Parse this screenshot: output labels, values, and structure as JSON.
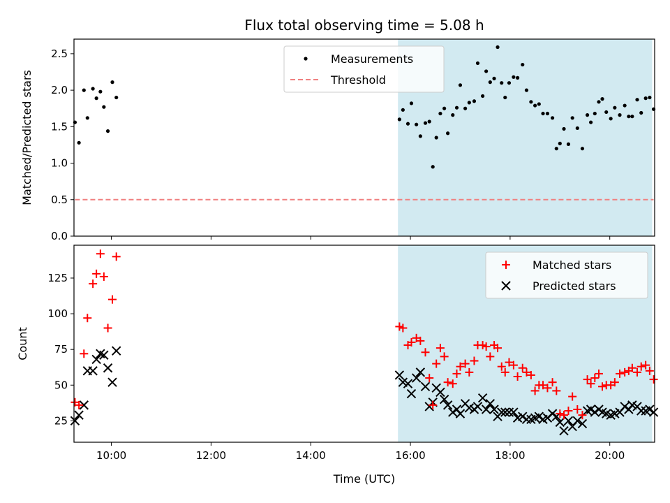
{
  "chart_data": [
    {
      "type": "scatter",
      "title": "Flux total observing time = 5.08 h",
      "ylabel": "Matched/Predicted stars",
      "ylim": [
        0,
        2.7
      ],
      "yticks": [
        "0.0",
        "0.5",
        "1.0",
        "1.5",
        "2.0",
        "2.5"
      ],
      "xlim": [
        9.25,
        20.9
      ],
      "shaded_region": [
        15.75,
        20.85
      ],
      "shade_color": "#add8e6",
      "threshold": 0.5,
      "legend": {
        "placement": "top-center",
        "items": [
          "Measurements",
          "Threshold"
        ]
      },
      "series": [
        {
          "name": "Measurements",
          "color": "#000000",
          "marker": "dot",
          "x": [
            9.27,
            9.35,
            9.45,
            9.52,
            9.63,
            9.7,
            9.78,
            9.85,
            9.93,
            10.02,
            10.1,
            15.78,
            15.85,
            15.95,
            16.02,
            16.12,
            16.2,
            16.3,
            16.38,
            16.45,
            16.52,
            16.6,
            16.68,
            16.75,
            16.85,
            16.93,
            17.0,
            17.1,
            17.18,
            17.28,
            17.35,
            17.45,
            17.52,
            17.6,
            17.68,
            17.75,
            17.83,
            17.9,
            17.98,
            18.07,
            18.15,
            18.25,
            18.33,
            18.42,
            18.5,
            18.58,
            18.66,
            18.75,
            18.85,
            18.93,
            19.0,
            19.08,
            19.17,
            19.25,
            19.35,
            19.45,
            19.55,
            19.62,
            19.7,
            19.78,
            19.85,
            19.93,
            20.02,
            20.1,
            20.2,
            20.3,
            20.38,
            20.45,
            20.55,
            20.63,
            20.72,
            20.8,
            20.88
          ],
          "y": [
            1.56,
            1.28,
            2.0,
            1.62,
            2.02,
            1.89,
            1.98,
            1.77,
            1.44,
            2.11,
            1.9,
            1.6,
            1.73,
            1.54,
            1.82,
            1.53,
            1.37,
            1.55,
            1.57,
            0.95,
            1.35,
            1.68,
            1.75,
            1.41,
            1.66,
            1.76,
            2.07,
            1.75,
            1.83,
            1.85,
            2.37,
            1.92,
            2.26,
            2.11,
            2.16,
            2.59,
            2.1,
            1.9,
            2.1,
            2.18,
            2.17,
            2.35,
            2.0,
            1.84,
            1.79,
            1.81,
            1.68,
            1.68,
            1.62,
            1.2,
            1.27,
            1.47,
            1.26,
            1.62,
            1.48,
            1.2,
            1.66,
            1.56,
            1.68,
            1.84,
            1.88,
            1.7,
            1.61,
            1.76,
            1.66,
            1.79,
            1.64,
            1.64,
            1.87,
            1.69,
            1.89,
            1.9,
            1.74
          ]
        },
        {
          "name": "Threshold",
          "color": "#f08080",
          "marker": "dashed-line",
          "x": [
            9.27,
            20.88
          ],
          "y": [
            0.5,
            0.5
          ]
        }
      ]
    },
    {
      "type": "scatter",
      "xlabel": "Time (UTC)",
      "ylabel": "Count",
      "ylim": [
        10,
        148
      ],
      "yticks": [
        "25",
        "50",
        "75",
        "100",
        "125"
      ],
      "xlim": [
        9.25,
        20.9
      ],
      "xticks": [
        "10:00",
        "12:00",
        "14:00",
        "16:00",
        "18:00",
        "20:00"
      ],
      "shaded_region": [
        15.75,
        20.85
      ],
      "shade_color": "#add8e6",
      "legend": {
        "placement": "top-right",
        "items": [
          "Matched stars",
          "Predicted stars"
        ]
      },
      "series": [
        {
          "name": "Matched stars",
          "color": "#ff0000",
          "marker": "plus",
          "x": [
            9.27,
            9.35,
            9.45,
            9.52,
            9.63,
            9.7,
            9.78,
            9.85,
            9.93,
            10.02,
            10.1,
            15.78,
            15.85,
            15.95,
            16.02,
            16.12,
            16.2,
            16.3,
            16.38,
            16.45,
            16.52,
            16.6,
            16.68,
            16.75,
            16.85,
            16.93,
            17.0,
            17.1,
            17.18,
            17.28,
            17.35,
            17.45,
            17.52,
            17.6,
            17.68,
            17.75,
            17.83,
            17.9,
            17.98,
            18.07,
            18.15,
            18.25,
            18.33,
            18.42,
            18.5,
            18.58,
            18.66,
            18.75,
            18.85,
            18.93,
            19.0,
            19.08,
            19.17,
            19.25,
            19.35,
            19.45,
            19.55,
            19.62,
            19.7,
            19.78,
            19.85,
            19.93,
            20.02,
            20.1,
            20.2,
            20.3,
            20.38,
            20.45,
            20.55,
            20.63,
            20.72,
            20.8,
            20.88
          ],
          "y": [
            38,
            36,
            72,
            97,
            121,
            128,
            142,
            126,
            90,
            110,
            140,
            91,
            90,
            78,
            80,
            83,
            81,
            73,
            55,
            36,
            65,
            76,
            70,
            52,
            51,
            58,
            63,
            65,
            59,
            67,
            78,
            78,
            77,
            70,
            78,
            76,
            63,
            59,
            66,
            64,
            56,
            62,
            59,
            57,
            46,
            50,
            50,
            48,
            52,
            46,
            30,
            29,
            32,
            42,
            33,
            29,
            54,
            51,
            55,
            58,
            49,
            50,
            50,
            52,
            58,
            59,
            60,
            62,
            59,
            63,
            64,
            60,
            54
          ]
        },
        {
          "name": "Predicted stars",
          "color": "#000000",
          "marker": "cross",
          "x": [
            9.27,
            9.35,
            9.45,
            9.52,
            9.63,
            9.7,
            9.78,
            9.85,
            9.93,
            10.02,
            10.1,
            15.78,
            15.85,
            15.95,
            16.02,
            16.12,
            16.2,
            16.3,
            16.38,
            16.45,
            16.52,
            16.6,
            16.68,
            16.75,
            16.85,
            16.93,
            17.0,
            17.1,
            17.18,
            17.28,
            17.35,
            17.45,
            17.52,
            17.6,
            17.68,
            17.75,
            17.83,
            17.9,
            17.98,
            18.07,
            18.15,
            18.25,
            18.33,
            18.42,
            18.5,
            18.58,
            18.66,
            18.75,
            18.85,
            18.93,
            19.0,
            19.08,
            19.17,
            19.25,
            19.35,
            19.45,
            19.55,
            19.62,
            19.7,
            19.78,
            19.85,
            19.93,
            20.02,
            20.1,
            20.2,
            20.3,
            20.38,
            20.45,
            20.55,
            20.63,
            20.72,
            20.8,
            20.88
          ],
          "y": [
            25,
            29,
            36,
            60,
            60,
            68,
            72,
            71,
            62,
            52,
            74,
            57,
            52,
            51,
            44,
            55,
            59,
            49,
            35,
            38,
            48,
            45,
            40,
            36,
            31,
            33,
            30,
            37,
            34,
            33,
            35,
            41,
            33,
            37,
            33,
            28,
            31,
            31,
            31,
            31,
            27,
            28,
            26,
            26,
            27,
            28,
            26,
            27,
            30,
            28,
            24,
            18,
            25,
            21,
            25,
            23,
            32,
            33,
            31,
            33,
            31,
            30,
            29,
            30,
            31,
            35,
            33,
            36,
            35,
            32,
            32,
            33,
            31
          ]
        }
      ]
    }
  ]
}
